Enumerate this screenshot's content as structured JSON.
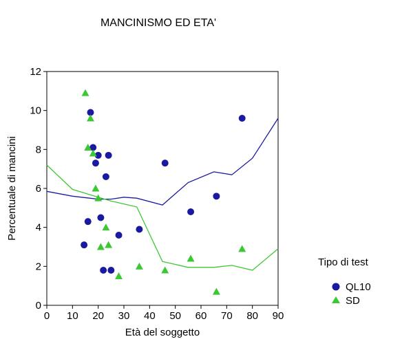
{
  "chart_data": {
    "type": "scatter",
    "title": "MANCINISMO ED ETA'",
    "xlabel": "Età del soggetto",
    "ylabel": "Percentuale di mancini",
    "xlim": [
      0,
      90
    ],
    "ylim": [
      0,
      12
    ],
    "x_ticks": [
      0,
      10,
      20,
      30,
      40,
      50,
      60,
      70,
      80,
      90
    ],
    "y_ticks": [
      0,
      2,
      4,
      6,
      8,
      10,
      12
    ],
    "grid": false,
    "legend": {
      "title": "Tipo di test",
      "placement": "right"
    },
    "series": [
      {
        "name": "QL10",
        "color": "#1a1aa0",
        "marker": "circle",
        "points": [
          [
            14.5,
            3.1
          ],
          [
            16,
            4.3
          ],
          [
            17,
            9.9
          ],
          [
            18,
            8.1
          ],
          [
            19,
            7.3
          ],
          [
            20,
            7.7
          ],
          [
            21,
            4.5
          ],
          [
            22,
            1.8
          ],
          [
            23,
            6.6
          ],
          [
            24,
            7.7
          ],
          [
            25,
            1.8
          ],
          [
            28,
            3.6
          ],
          [
            36,
            3.9
          ],
          [
            46,
            7.3
          ],
          [
            56,
            4.8
          ],
          [
            66,
            5.6
          ],
          [
            76,
            9.6
          ]
        ],
        "trend": [
          [
            0,
            5.85
          ],
          [
            10,
            5.6
          ],
          [
            20,
            5.45
          ],
          [
            25,
            5.45
          ],
          [
            30,
            5.55
          ],
          [
            35,
            5.5
          ],
          [
            45,
            5.15
          ],
          [
            55,
            6.3
          ],
          [
            65,
            6.85
          ],
          [
            72,
            6.7
          ],
          [
            80,
            7.55
          ],
          [
            90,
            9.6
          ]
        ]
      },
      {
        "name": "SD",
        "color": "#3cc832",
        "marker": "triangle",
        "points": [
          [
            15,
            10.9
          ],
          [
            16,
            8.1
          ],
          [
            17,
            9.6
          ],
          [
            18,
            7.8
          ],
          [
            19,
            6.0
          ],
          [
            20,
            5.5
          ],
          [
            21,
            3.0
          ],
          [
            23,
            4.0
          ],
          [
            24,
            3.1
          ],
          [
            28,
            1.5
          ],
          [
            36,
            2.0
          ],
          [
            46,
            1.8
          ],
          [
            56,
            2.4
          ],
          [
            66,
            0.7
          ],
          [
            76,
            2.9
          ]
        ],
        "trend": [
          [
            0,
            7.2
          ],
          [
            10,
            5.95
          ],
          [
            20,
            5.55
          ],
          [
            25,
            5.35
          ],
          [
            35,
            5.05
          ],
          [
            45,
            2.25
          ],
          [
            55,
            1.95
          ],
          [
            65,
            1.95
          ],
          [
            72,
            2.05
          ],
          [
            80,
            1.8
          ],
          [
            90,
            2.9
          ]
        ]
      }
    ]
  }
}
